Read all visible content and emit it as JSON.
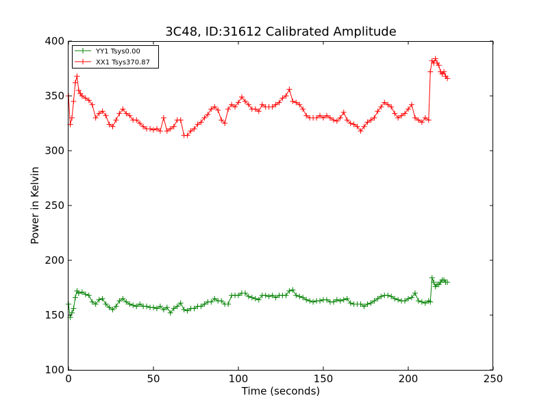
{
  "chart_data": {
    "type": "line",
    "title": "3C48, ID:31612 Calibrated Amplitude",
    "xlabel": "Time (seconds)",
    "ylabel": "Power in Kelvin",
    "xlim": [
      0,
      250
    ],
    "ylim": [
      100,
      400
    ],
    "xticks": [
      "0",
      "50",
      "100",
      "150",
      "200",
      "250"
    ],
    "yticks": [
      "100",
      "150",
      "200",
      "250",
      "300",
      "350",
      "400"
    ],
    "grid": false,
    "legend_position": "top-left",
    "marker": "+",
    "series": [
      {
        "name": "YY1 Tsys0.00",
        "color": "#008000",
        "x": [
          0,
          1,
          2,
          3,
          4,
          5,
          6,
          8,
          10,
          12,
          14,
          16,
          18,
          20,
          22,
          24,
          26,
          28,
          30,
          32,
          34,
          36,
          38,
          40,
          42,
          44,
          46,
          48,
          50,
          52,
          54,
          56,
          58,
          60,
          62,
          64,
          66,
          68,
          70,
          72,
          74,
          76,
          78,
          80,
          82,
          84,
          86,
          88,
          90,
          92,
          94,
          96,
          98,
          100,
          102,
          104,
          106,
          108,
          110,
          112,
          114,
          116,
          118,
          120,
          122,
          124,
          126,
          128,
          130,
          132,
          134,
          136,
          138,
          140,
          142,
          144,
          146,
          148,
          150,
          152,
          154,
          156,
          158,
          160,
          162,
          164,
          166,
          168,
          170,
          172,
          174,
          176,
          178,
          180,
          182,
          184,
          186,
          188,
          190,
          192,
          194,
          196,
          198,
          200,
          202,
          204,
          206,
          208,
          210,
          212,
          213,
          214,
          215,
          216,
          217,
          218,
          219,
          220,
          221,
          222,
          223
        ],
        "y": [
          160,
          148,
          152,
          156,
          166,
          172,
          170,
          171,
          169,
          168,
          162,
          160,
          164,
          165,
          160,
          157,
          155,
          158,
          163,
          165,
          162,
          160,
          159,
          158,
          160,
          158,
          158,
          157,
          157,
          156,
          158,
          155,
          157,
          152,
          156,
          158,
          161,
          155,
          154,
          156,
          156,
          158,
          158,
          160,
          162,
          162,
          165,
          163,
          163,
          160,
          160,
          168,
          168,
          168,
          170,
          170,
          167,
          166,
          165,
          164,
          168,
          168,
          167,
          168,
          166,
          168,
          168,
          168,
          172,
          173,
          168,
          167,
          166,
          164,
          163,
          162,
          163,
          163,
          164,
          164,
          162,
          162,
          164,
          163,
          164,
          165,
          161,
          160,
          160,
          160,
          158,
          160,
          161,
          163,
          165,
          167,
          168,
          168,
          167,
          165,
          164,
          163,
          163,
          165,
          166,
          170,
          163,
          162,
          161,
          163,
          162,
          184,
          180,
          176,
          178,
          178,
          180,
          182,
          182,
          180,
          180
        ]
      },
      {
        "name": "XX1 Tsys370.87",
        "color": "#ff0000",
        "x": [
          0,
          1,
          2,
          3,
          4,
          5,
          6,
          7,
          8,
          10,
          12,
          14,
          16,
          18,
          20,
          22,
          24,
          26,
          28,
          30,
          32,
          34,
          36,
          38,
          40,
          42,
          44,
          46,
          48,
          50,
          52,
          54,
          56,
          58,
          60,
          62,
          64,
          66,
          68,
          70,
          72,
          74,
          76,
          78,
          80,
          82,
          84,
          86,
          88,
          90,
          92,
          94,
          96,
          98,
          100,
          102,
          104,
          106,
          108,
          110,
          112,
          114,
          116,
          118,
          120,
          122,
          124,
          126,
          128,
          130,
          132,
          134,
          136,
          138,
          140,
          142,
          144,
          146,
          148,
          150,
          152,
          154,
          156,
          158,
          160,
          162,
          164,
          166,
          168,
          170,
          172,
          174,
          176,
          178,
          180,
          182,
          184,
          186,
          188,
          190,
          192,
          194,
          196,
          198,
          200,
          202,
          204,
          206,
          208,
          210,
          212,
          213,
          214,
          215,
          216,
          217,
          218,
          219,
          220,
          221,
          222,
          223
        ],
        "y": [
          350,
          324,
          330,
          345,
          362,
          368,
          355,
          352,
          350,
          348,
          346,
          342,
          330,
          334,
          336,
          332,
          324,
          322,
          328,
          334,
          338,
          334,
          332,
          328,
          328,
          325,
          322,
          320,
          320,
          319,
          320,
          318,
          330,
          318,
          320,
          322,
          328,
          328,
          314,
          314,
          318,
          320,
          324,
          326,
          330,
          333,
          338,
          340,
          337,
          328,
          325,
          338,
          342,
          340,
          344,
          349,
          345,
          342,
          338,
          338,
          336,
          342,
          340,
          340,
          340,
          342,
          344,
          348,
          350,
          356,
          345,
          344,
          342,
          338,
          332,
          330,
          330,
          330,
          332,
          330,
          332,
          330,
          328,
          327,
          330,
          335,
          328,
          325,
          324,
          322,
          318,
          322,
          326,
          328,
          330,
          336,
          340,
          344,
          342,
          340,
          334,
          330,
          332,
          334,
          338,
          342,
          330,
          328,
          326,
          330,
          328,
          372,
          382,
          380,
          384,
          380,
          378,
          372,
          370,
          372,
          368,
          366
        ]
      }
    ]
  }
}
